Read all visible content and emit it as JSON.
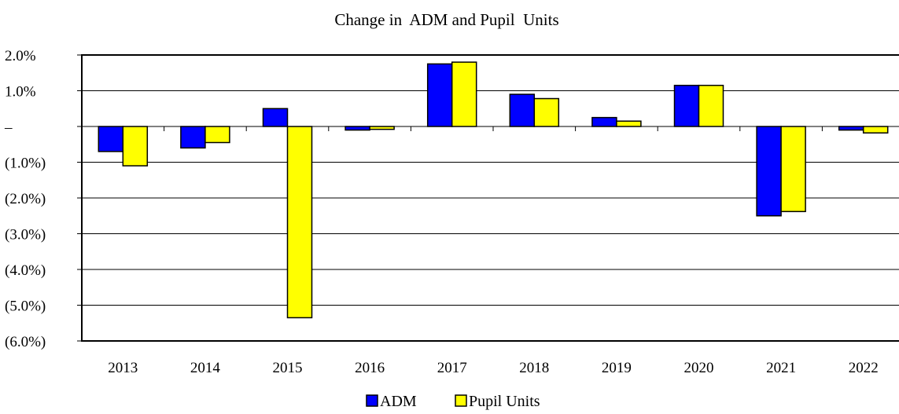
{
  "chart_data": {
    "type": "bar",
    "title": "Change in  ADM and Pupil  Units",
    "xlabel": "",
    "ylabel": "",
    "categories": [
      "2013",
      "2014",
      "2015",
      "2016",
      "2017",
      "2018",
      "2019",
      "2020",
      "2021",
      "2022"
    ],
    "series": [
      {
        "name": "ADM",
        "color": "#0000ff",
        "values": [
          -0.7,
          -0.6,
          0.5,
          -0.1,
          1.75,
          0.9,
          0.25,
          1.15,
          -2.5,
          -0.1
        ]
      },
      {
        "name": "Pupil Units",
        "color": "#ffff00",
        "values": [
          -1.1,
          -0.45,
          -5.35,
          -0.08,
          1.8,
          0.78,
          0.15,
          1.15,
          -2.38,
          -0.18
        ]
      }
    ],
    "ylim": [
      -6,
      2
    ],
    "yticks": [
      2,
      1,
      0,
      -1,
      -2,
      -3,
      -4,
      -5,
      -6
    ],
    "ytick_labels": [
      "2.0%",
      "1.0%",
      "–",
      "(1.0%)",
      "(2.0%)",
      "(3.0%)",
      "(4.0%)",
      "(5.0%)",
      "(6.0%)"
    ],
    "grid": true,
    "legend_position": "bottom-center"
  }
}
